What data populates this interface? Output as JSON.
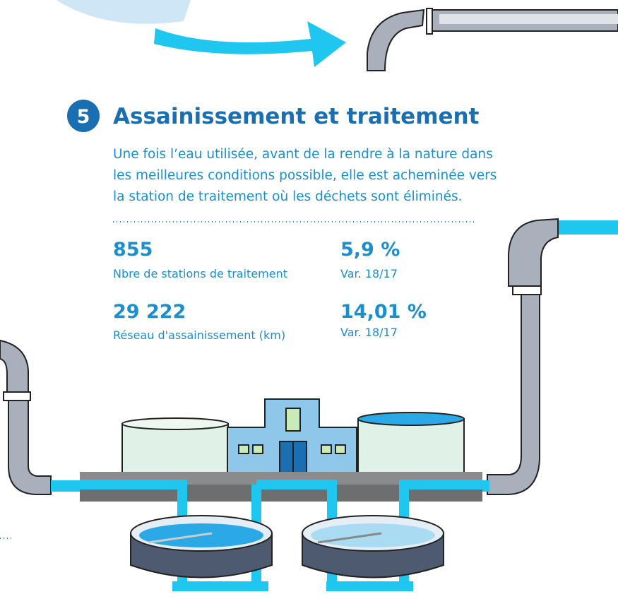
{
  "section": {
    "number": "5",
    "title": "Assainissement et traitement",
    "paragraph": [
      "Une fois l’eau utilisée, avant de la rendre à la nature dans",
      "les meilleures conditions possible, elle est acheminée vers",
      "la station de traitement où les déchets sont éliminés."
    ]
  },
  "stats": [
    {
      "value": "855",
      "label": "Nbre de stations de traitement"
    },
    {
      "value": "5,9 %",
      "label": "Var. 18/17"
    },
    {
      "value": "29 222",
      "label": "Réseau d'assainissement (km)"
    },
    {
      "value": "14,01 %",
      "label": "Var. 18/17"
    }
  ]
}
